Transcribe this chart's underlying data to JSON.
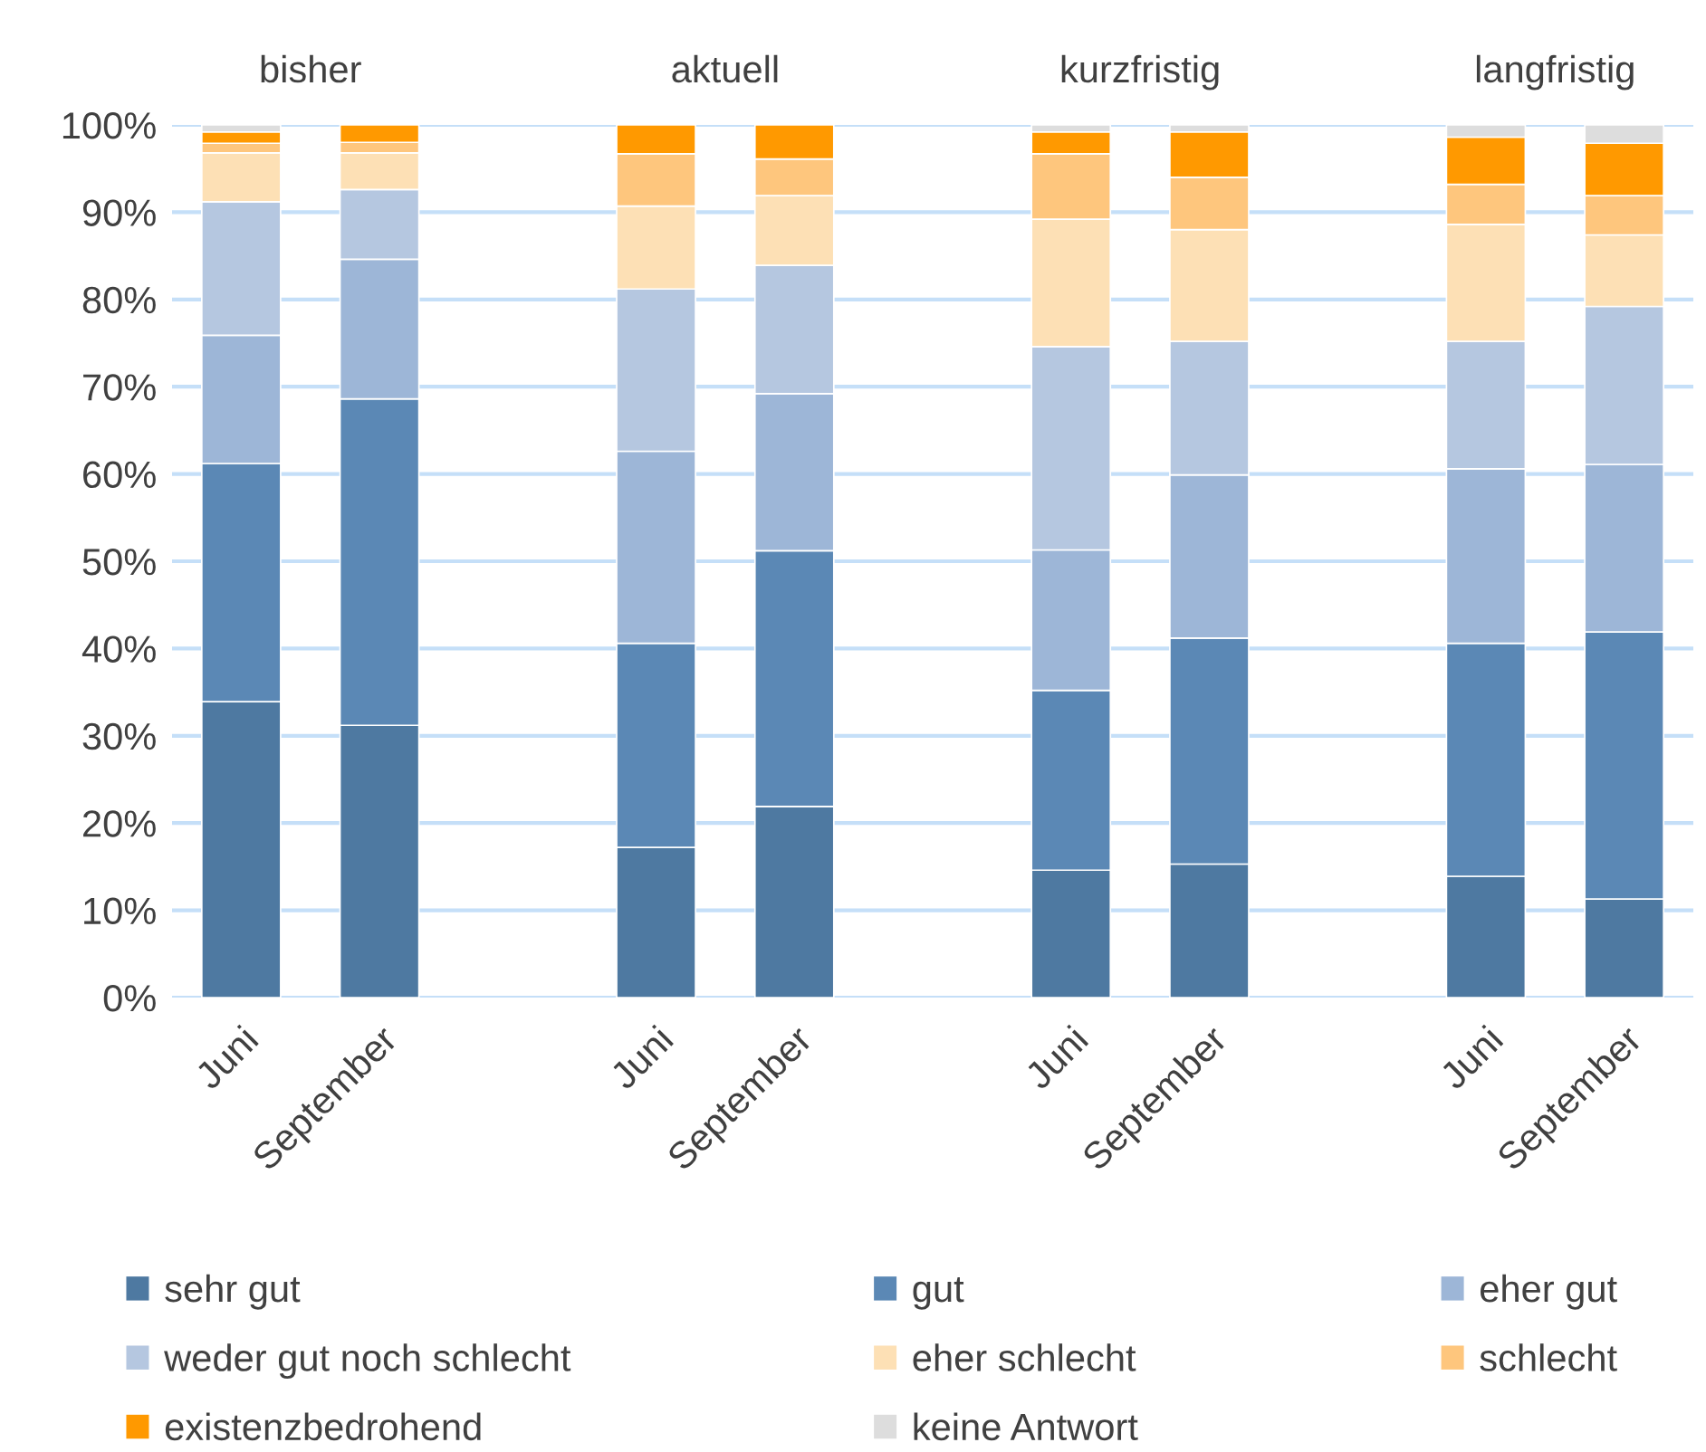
{
  "chart_data": {
    "type": "bar",
    "stacked": true,
    "categories": [
      "Juni",
      "September",
      null,
      "Juni",
      "September",
      null,
      "Juni",
      "September",
      null,
      "Juni",
      "September"
    ],
    "annotations": [
      "bisher",
      "aktuell",
      "kurzfristig",
      "langfristig"
    ],
    "series": [
      {
        "name": "sehr gut",
        "color": "#4e79a1",
        "values": [
          33.9,
          31.2,
          null,
          17.2,
          21.9,
          null,
          14.6,
          15.3,
          null,
          13.9,
          11.3
        ]
      },
      {
        "name": "gut",
        "color": "#5b88b5",
        "values": [
          27.3,
          37.4,
          null,
          23.4,
          29.3,
          null,
          20.6,
          25.9,
          null,
          26.7,
          30.6
        ]
      },
      {
        "name": "eher gut",
        "color": "#9db6d7",
        "values": [
          14.7,
          16.0,
          null,
          22.0,
          18.0,
          null,
          16.1,
          18.7,
          null,
          20.0,
          19.2
        ]
      },
      {
        "name": "weder gut noch schlecht",
        "color": "#b5c7e0",
        "values": [
          15.3,
          8.0,
          null,
          18.6,
          14.7,
          null,
          23.3,
          15.3,
          null,
          14.6,
          18.1
        ]
      },
      {
        "name": "eher schlecht",
        "color": "#fde0b5",
        "values": [
          5.6,
          4.2,
          null,
          9.5,
          8.0,
          null,
          14.6,
          12.8,
          null,
          13.4,
          8.2
        ]
      },
      {
        "name": "schlecht",
        "color": "#fec67d",
        "values": [
          1.1,
          1.2,
          null,
          6.0,
          4.2,
          null,
          7.5,
          6.0,
          null,
          4.6,
          4.5
        ]
      },
      {
        "name": "existenzbedrohend",
        "color": "#ff9900",
        "values": [
          1.3,
          2.0,
          null,
          3.3,
          3.9,
          null,
          2.5,
          5.2,
          null,
          5.4,
          6.0
        ]
      },
      {
        "name": "keine Antwort",
        "color": "#dddddd",
        "values": [
          0.8,
          0,
          null,
          0,
          0,
          null,
          0.8,
          0.8,
          null,
          1.4,
          2.1
        ]
      }
    ],
    "ylim": [
      0,
      100
    ],
    "yticks": [
      {
        "value": 0,
        "label": "0%"
      },
      {
        "value": 10,
        "label": "10%"
      },
      {
        "value": 20,
        "label": "20%"
      },
      {
        "value": 30,
        "label": "30%"
      },
      {
        "value": 40,
        "label": "40%"
      },
      {
        "value": 50,
        "label": "50%"
      },
      {
        "value": 60,
        "label": "60%"
      },
      {
        "value": 70,
        "label": "70%"
      },
      {
        "value": 80,
        "label": "80%"
      },
      {
        "value": 90,
        "label": "90%"
      },
      {
        "value": 100,
        "label": "100%"
      }
    ],
    "grid": "y",
    "legend": "bottom"
  }
}
